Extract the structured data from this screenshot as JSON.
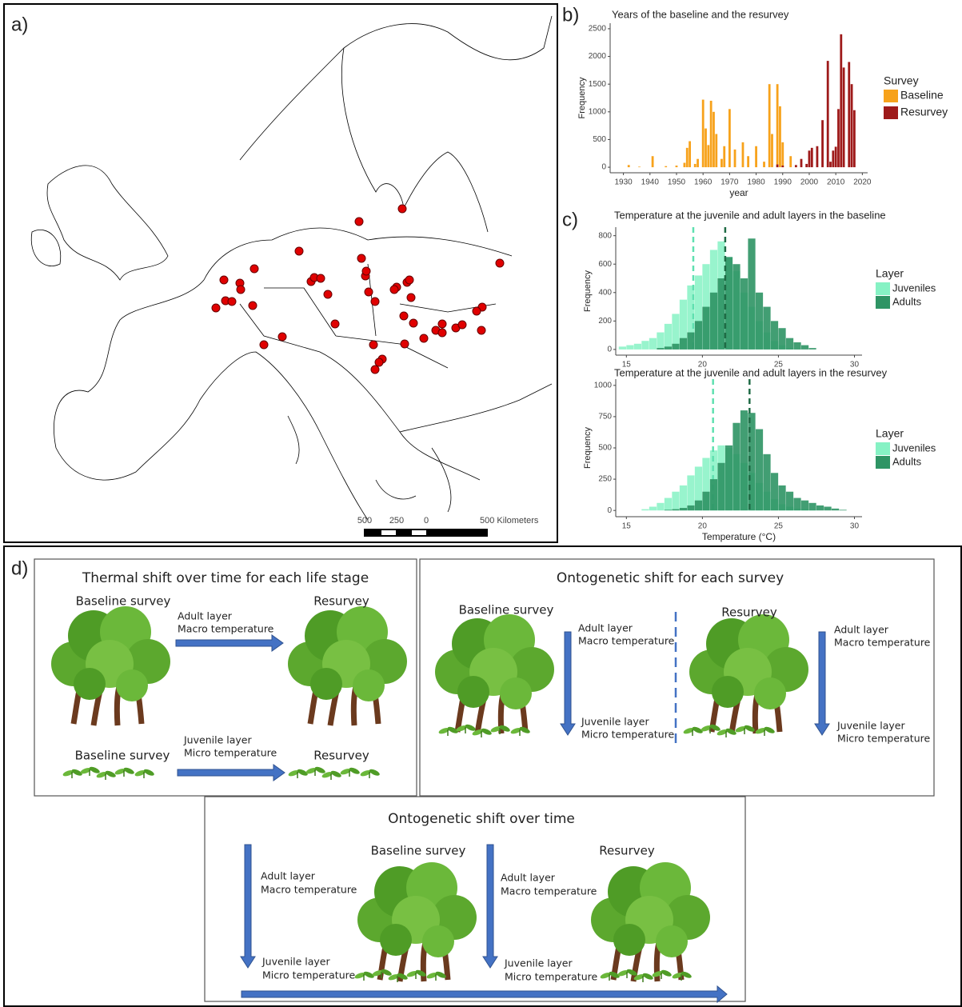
{
  "panel_labels": [
    "a)",
    "b)",
    "c)",
    "d)"
  ],
  "map": {
    "scale_labels": [
      "500",
      "250",
      "0",
      "500 Kilometers"
    ]
  },
  "chart_data": [
    {
      "type": "bar",
      "title": "Years of the baseline and the resurvey",
      "x_label": "year",
      "y_label": "Frequency",
      "legend_title": "Survey",
      "x": [
        1932,
        1936,
        1941,
        1946,
        1950,
        1953,
        1954,
        1955,
        1957,
        1958,
        1960,
        1961,
        1962,
        1963,
        1964,
        1965,
        1967,
        1968,
        1970,
        1972,
        1975,
        1977,
        1980,
        1983,
        1985,
        1986,
        1988,
        1989,
        1990,
        1993,
        1995,
        1997,
        1999,
        2000,
        2001,
        2003,
        2005,
        2007,
        2008,
        2009,
        2010,
        2011,
        2012,
        2013,
        2015,
        2016,
        2017
      ],
      "series": [
        {
          "name": "Baseline",
          "color": "#f7a21b",
          "values": [
            40,
            10,
            200,
            20,
            30,
            80,
            350,
            470,
            60,
            150,
            1220,
            700,
            400,
            1200,
            1000,
            600,
            150,
            380,
            1050,
            320,
            450,
            200,
            380,
            100,
            1500,
            600,
            1500,
            1100,
            450,
            200,
            10,
            null,
            null,
            null,
            null,
            null,
            null,
            null,
            null,
            null,
            null,
            null,
            null,
            null,
            null,
            null,
            null
          ]
        },
        {
          "name": "Resurvey",
          "color": "#9e1a1a",
          "values": [
            null,
            null,
            null,
            null,
            null,
            null,
            null,
            null,
            null,
            null,
            null,
            null,
            null,
            null,
            null,
            null,
            null,
            null,
            null,
            null,
            null,
            null,
            null,
            null,
            null,
            null,
            50,
            null,
            30,
            null,
            40,
            150,
            60,
            300,
            350,
            380,
            850,
            1920,
            100,
            300,
            370,
            1050,
            2400,
            1800,
            1900,
            1500,
            1030
          ]
        }
      ],
      "xlim": [
        1925,
        2022
      ],
      "ylim": [
        -100,
        2600
      ],
      "xticks": [
        1930,
        1940,
        1950,
        1960,
        1970,
        1980,
        1990,
        2000,
        2010,
        2020
      ],
      "yticks": [
        0,
        500,
        1000,
        1500,
        2000,
        2500
      ]
    },
    {
      "type": "histogram",
      "title": "Temperature at the juvenile and adult layers in the baseline",
      "y_label": "Frequency",
      "legend_title": "Layer",
      "bins": [
        14.5,
        15,
        15.5,
        16,
        16.5,
        17,
        17.5,
        18,
        18.5,
        19,
        19.5,
        20,
        20.5,
        21,
        21.5,
        22,
        22.5,
        23,
        23.5,
        24,
        24.5,
        25,
        25.5,
        26,
        26.5,
        27,
        27.5
      ],
      "series": [
        {
          "name": "Juveniles",
          "color": "#86f2c4",
          "mean": 19.4,
          "values": [
            20,
            30,
            40,
            60,
            80,
            120,
            180,
            250,
            350,
            450,
            520,
            600,
            700,
            760,
            650,
            550,
            400,
            300,
            200,
            120,
            60,
            30,
            10,
            5,
            0,
            0
          ]
        },
        {
          "name": "Adults",
          "color": "#2e9464",
          "mean": 21.5,
          "values": [
            0,
            0,
            0,
            0,
            0,
            10,
            20,
            40,
            80,
            120,
            200,
            300,
            400,
            500,
            650,
            600,
            500,
            780,
            400,
            300,
            200,
            150,
            80,
            50,
            30,
            10
          ]
        }
      ],
      "xlim": [
        14.3,
        30.5
      ],
      "ylim": [
        -40,
        860
      ],
      "xticks": [
        15,
        20,
        25,
        30
      ],
      "yticks": [
        0,
        200,
        400,
        600,
        800
      ]
    },
    {
      "type": "histogram",
      "title": "Temperature at the juvenile and adult layers in the resurvey",
      "x_label": "Temperature (°C)",
      "y_label": "Frequency",
      "legend_title": "Layer",
      "bins": [
        15.5,
        16,
        16.5,
        17,
        17.5,
        18,
        18.5,
        19,
        19.5,
        20,
        20.5,
        21,
        21.5,
        22,
        22.5,
        23,
        23.5,
        24,
        24.5,
        25,
        25.5,
        26,
        26.5,
        27,
        27.5,
        28,
        28.5,
        29,
        29.5
      ],
      "series": [
        {
          "name": "Juveniles",
          "color": "#86f2c4",
          "mean": 20.7,
          "values": [
            0,
            10,
            30,
            60,
            100,
            150,
            200,
            280,
            350,
            420,
            480,
            520,
            500,
            450,
            380,
            300,
            220,
            150,
            90,
            50,
            30,
            15,
            10,
            5,
            0,
            0,
            0,
            0
          ]
        },
        {
          "name": "Adults",
          "color": "#2e9464",
          "mean": 23.1,
          "values": [
            0,
            0,
            0,
            0,
            5,
            10,
            20,
            40,
            80,
            150,
            250,
            380,
            520,
            700,
            800,
            780,
            650,
            450,
            300,
            200,
            150,
            100,
            80,
            60,
            40,
            30,
            15,
            5
          ]
        }
      ],
      "xlim": [
        14.3,
        30.5
      ],
      "ylim": [
        -50,
        1050
      ],
      "xticks": [
        15,
        20,
        25,
        30
      ],
      "yticks": [
        0,
        250,
        500,
        750,
        1000
      ]
    }
  ],
  "diagram": {
    "box1": {
      "title": "Thermal shift over time for each life stage",
      "survey_top": [
        "Baseline survey",
        "Resurvey"
      ],
      "survey_bottom": [
        "Baseline survey",
        "Resurvey"
      ],
      "adult": [
        "Adult layer",
        "Macro temperature"
      ],
      "juvenile": [
        "Juvenile layer",
        "Micro temperature"
      ]
    },
    "box2": {
      "title": "Ontogenetic shift for each survey",
      "surveys": [
        "Baseline survey",
        "Resurvey"
      ],
      "adult": [
        "Adult layer",
        "Macro temperature"
      ],
      "juvenile": [
        "Juvenile layer",
        "Micro temperature"
      ]
    },
    "box3": {
      "title": "Ontogenetic shift over time",
      "surveys": [
        "Baseline survey",
        "Resurvey"
      ],
      "adult": [
        "Adult layer",
        "Macro temperature"
      ],
      "juvenile": [
        "Juvenile layer",
        "Micro temperature"
      ]
    }
  }
}
